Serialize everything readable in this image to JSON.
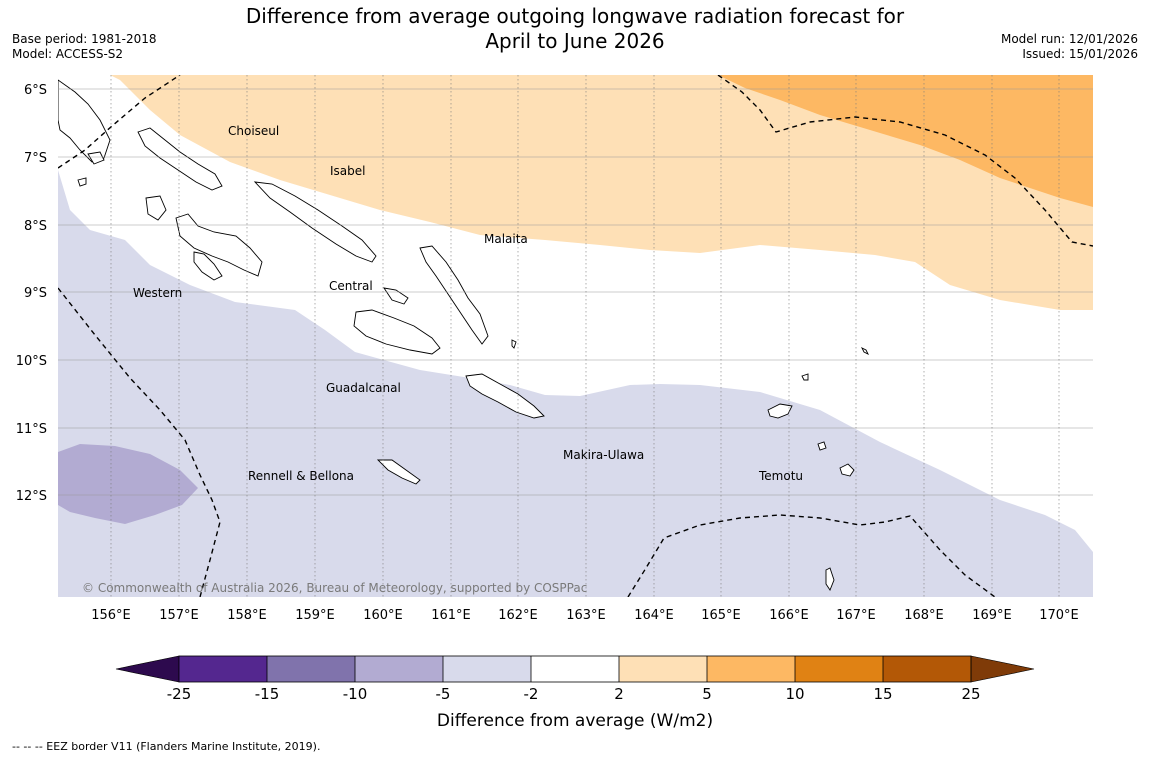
{
  "title": {
    "line1": "Difference from average outgoing longwave radiation forecast for",
    "line2": "April to June 2026"
  },
  "meta": {
    "base_period": "Base period: 1981-2018",
    "model": "Model: ACCESS-S2",
    "model_run": "Model run: 12/01/2026",
    "issued": "Issued: 15/01/2026"
  },
  "map": {
    "lat_labels": [
      "6°S",
      "7°S",
      "8°S",
      "9°S",
      "10°S",
      "11°S",
      "12°S"
    ],
    "lon_labels": [
      "156°E",
      "157°E",
      "158°E",
      "159°E",
      "160°E",
      "161°E",
      "162°E",
      "163°E",
      "164°E",
      "165°E",
      "166°E",
      "167°E",
      "168°E",
      "169°E",
      "170°E"
    ],
    "regions": {
      "choiseul": "Choiseul",
      "isabel": "Isabel",
      "malaita": "Malaita",
      "central": "Central",
      "western": "Western",
      "guadalcanal": "Guadalcanal",
      "makira": "Makira-Ulawa",
      "rennell": "Rennell & Bellona",
      "temotu": "Temotu"
    },
    "copyright": "© Commonwealth of Australia 2026, Bureau of Meteorology, supported by COSPPac"
  },
  "colorbar": {
    "ticks": [
      "-25",
      "-15",
      "-10",
      "-5",
      "-2",
      "2",
      "5",
      "10",
      "15",
      "25"
    ],
    "colors": [
      "#2d0a4e",
      "#54278f",
      "#8073ac",
      "#b2abd2",
      "#d8daeb",
      "#ffffff",
      "#fee0b6",
      "#fdb863",
      "#e08214",
      "#b35806",
      "#7f3b08"
    ],
    "title": "Difference from average (W/m2)"
  },
  "footnote": "--  --  -- EEZ border V11 (Flanders Marine Institute, 2019)."
}
